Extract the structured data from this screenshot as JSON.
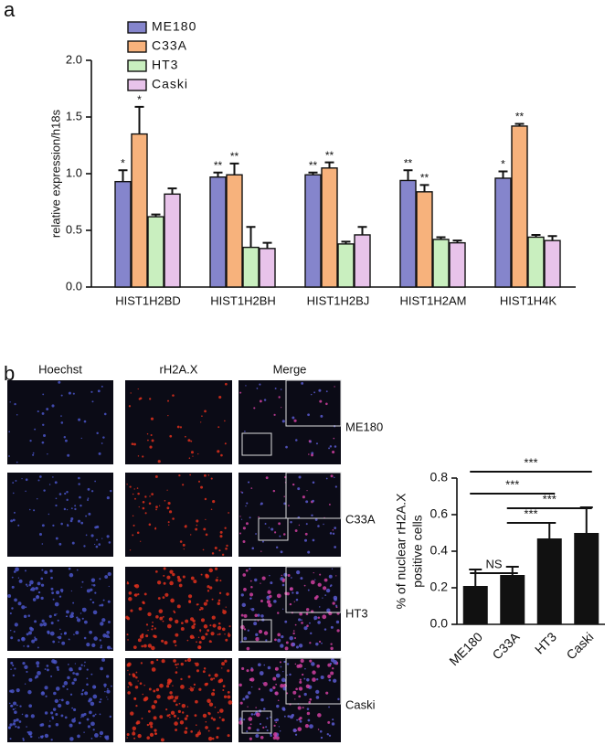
{
  "panel_labels": [
    "a",
    "b"
  ],
  "image_grid": {
    "columns": [
      "Hoechst",
      "rH2A.X",
      "Merge"
    ],
    "rows": [
      "ME180",
      "C33A",
      "HT3",
      "Caski"
    ]
  },
  "chart_data": [
    {
      "type": "grouped_bar",
      "ylabel": "relative expression/h18s",
      "categories": [
        "HIST1H2BD",
        "HIST1H2BH",
        "HIST1H2BJ",
        "HIST1H2AM",
        "HIST1H4K"
      ],
      "series": [
        {
          "name": "ME180",
          "color": "#8585cc",
          "values": [
            0.93,
            0.97,
            0.99,
            0.94,
            0.96
          ],
          "errors": [
            0.1,
            0.04,
            0.02,
            0.09,
            0.06
          ],
          "significance": [
            "*",
            "**",
            "**",
            "**",
            "*"
          ]
        },
        {
          "name": "C33A",
          "color": "#f7b27c",
          "values": [
            1.35,
            0.99,
            1.05,
            0.84,
            1.42
          ],
          "errors": [
            0.24,
            0.1,
            0.05,
            0.06,
            0.02
          ],
          "significance": [
            "*",
            "**",
            "**",
            "**",
            "**"
          ]
        },
        {
          "name": "HT3",
          "color": "#c9efbf",
          "values": [
            0.62,
            0.35,
            0.38,
            0.42,
            0.44
          ],
          "errors": [
            0.02,
            0.18,
            0.02,
            0.02,
            0.02
          ]
        },
        {
          "name": "Caski",
          "color": "#e8c3ea",
          "values": [
            0.82,
            0.34,
            0.46,
            0.39,
            0.41
          ],
          "errors": [
            0.05,
            0.05,
            0.07,
            0.02,
            0.04
          ]
        }
      ],
      "ylim": [
        0,
        2
      ],
      "yticks": [
        {
          "value": 0,
          "label": "0.0"
        },
        0.5,
        {
          "value": 1,
          "label": "1.0"
        },
        1.5,
        {
          "value": 2,
          "label": "2.0"
        }
      ]
    },
    {
      "type": "bar",
      "ylabel": [
        "% of nuclear rH2A.X",
        "positive cells"
      ],
      "categories": [
        "ME180",
        "C33A",
        "HT3",
        "Caski"
      ],
      "values": [
        0.21,
        0.27,
        0.47,
        0.5
      ],
      "errors": [
        0.09,
        0.045,
        0.085,
        0.14
      ],
      "color": "#111111",
      "ylim": [
        0,
        0.8
      ],
      "yticks": [
        {
          "value": 0,
          "label": "0.0"
        },
        0.2,
        0.4,
        0.6,
        0.8
      ],
      "comparisons": [
        {
          "pair": [
            0,
            1
          ],
          "label": "NS"
        },
        {
          "pair": [
            1,
            2
          ],
          "label": "***"
        },
        {
          "pair": [
            1,
            3
          ],
          "label": "***"
        },
        {
          "pair": [
            0,
            2
          ],
          "label": "***"
        },
        {
          "pair": [
            0,
            3
          ],
          "label": "***"
        }
      ]
    }
  ]
}
